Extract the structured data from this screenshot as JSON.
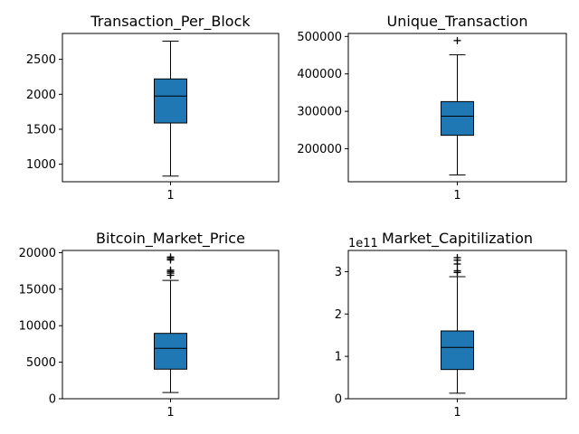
{
  "chart_data": [
    {
      "type": "box",
      "title": "Transaction_Per_Block",
      "categories": [
        "1"
      ],
      "ylim": [
        750,
        2870
      ],
      "yticks": [
        1000,
        1500,
        2000,
        2500
      ],
      "ytick_labels": [
        "1000",
        "1500",
        "2000",
        "2500"
      ],
      "offset_label": "",
      "box": {
        "whisker_low": 830,
        "q1": 1590,
        "median": 1975,
        "q3": 2220,
        "whisker_high": 2760,
        "fliers": []
      },
      "color": "#1f77b4"
    },
    {
      "type": "box",
      "title": "Unique_Transaction",
      "categories": [
        "1"
      ],
      "ylim": [
        112000,
        508000
      ],
      "yticks": [
        200000,
        300000,
        400000,
        500000
      ],
      "ytick_labels": [
        "200000",
        "300000",
        "400000",
        "500000"
      ],
      "offset_label": "",
      "box": {
        "whisker_low": 130000,
        "q1": 236000,
        "median": 287000,
        "q3": 326000,
        "whisker_high": 451000,
        "fliers": [
          489000
        ]
      },
      "color": "#1f77b4"
    },
    {
      "type": "box",
      "title": "Bitcoin_Market_Price",
      "categories": [
        "1"
      ],
      "ylim": [
        0,
        20300
      ],
      "yticks": [
        0,
        5000,
        10000,
        15000,
        20000
      ],
      "ytick_labels": [
        "0",
        "5000",
        "10000",
        "15000",
        "20000"
      ],
      "offset_label": "",
      "box": {
        "whisker_low": 850,
        "q1": 4050,
        "median": 6900,
        "q3": 8950,
        "whisker_high": 16200,
        "fliers": [
          16900,
          17200,
          17400,
          17600,
          19000,
          19200,
          19400
        ]
      },
      "color": "#1f77b4"
    },
    {
      "type": "box",
      "title": "Market_Capitilization",
      "categories": [
        "1"
      ],
      "ylim": [
        0,
        3.5
      ],
      "yticks": [
        0,
        1,
        2,
        3
      ],
      "ytick_labels": [
        "0",
        "1",
        "2",
        "3"
      ],
      "offset_label": "1e11",
      "box": {
        "whisker_low": 0.13,
        "q1": 0.69,
        "median": 1.21,
        "q3": 1.6,
        "whisker_high": 2.88,
        "fliers": [
          2.98,
          3.02,
          3.18,
          3.27,
          3.33
        ]
      },
      "color": "#1f77b4"
    }
  ]
}
